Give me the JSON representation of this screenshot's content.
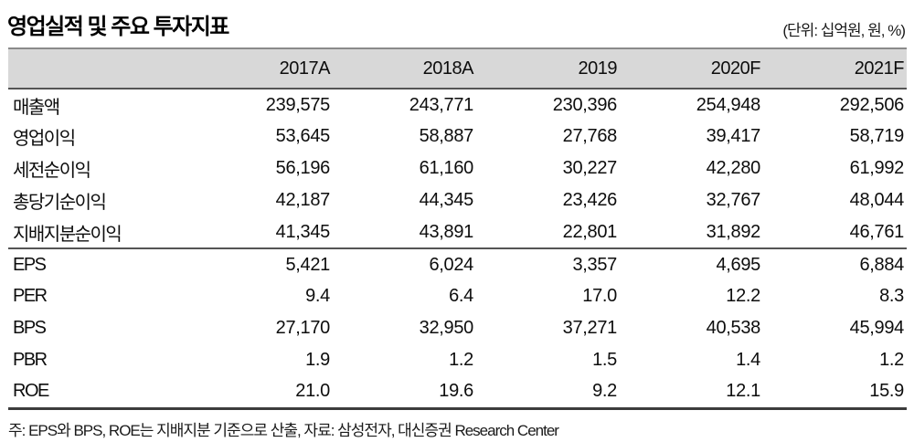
{
  "page": {
    "title": "영업실적 및 주요 투자지표",
    "unit_label": "(단위: 십억원, 원, %)",
    "footnote": "주: EPS와 BPS, ROE는 지배지분 기준으로 산출, 자료: 삼성전자, 대신증권 Research Center"
  },
  "colors": {
    "header_bg": "#d8d8d8",
    "rule_light": "#8a8a8a",
    "rule_dark": "#545454",
    "rule_bottom": "#3c3c3c",
    "text": "#0d0d0d"
  },
  "chart_data": {
    "type": "table",
    "title": "영업실적 및 주요 투자지표",
    "unit": "십억원, 원, %",
    "columns": [
      "",
      "2017A",
      "2018A",
      "2019",
      "2020F",
      "2021F"
    ],
    "sections": [
      {
        "name": "earnings",
        "rows": [
          {
            "label": "매출액",
            "values": [
              "239,575",
              "243,771",
              "230,396",
              "254,948",
              "292,506"
            ]
          },
          {
            "label": "영업이익",
            "values": [
              "53,645",
              "58,887",
              "27,768",
              "39,417",
              "58,719"
            ]
          },
          {
            "label": "세전순이익",
            "values": [
              "56,196",
              "61,160",
              "30,227",
              "42,280",
              "61,992"
            ]
          },
          {
            "label": "총당기순이익",
            "values": [
              "42,187",
              "44,345",
              "23,426",
              "32,767",
              "48,044"
            ]
          },
          {
            "label": "지배지분순이익",
            "values": [
              "41,345",
              "43,891",
              "22,801",
              "31,892",
              "46,761"
            ]
          }
        ]
      },
      {
        "name": "valuation",
        "rows": [
          {
            "label": "EPS",
            "values": [
              "5,421",
              "6,024",
              "3,357",
              "4,695",
              "6,884"
            ]
          },
          {
            "label": "PER",
            "values": [
              "9.4",
              "6.4",
              "17.0",
              "12.2",
              "8.3"
            ]
          },
          {
            "label": "BPS",
            "values": [
              "27,170",
              "32,950",
              "37,271",
              "40,538",
              "45,994"
            ]
          },
          {
            "label": "PBR",
            "values": [
              "1.9",
              "1.2",
              "1.5",
              "1.4",
              "1.2"
            ]
          },
          {
            "label": "ROE",
            "values": [
              "21.0",
              "19.6",
              "9.2",
              "12.1",
              "15.9"
            ]
          }
        ]
      }
    ]
  }
}
